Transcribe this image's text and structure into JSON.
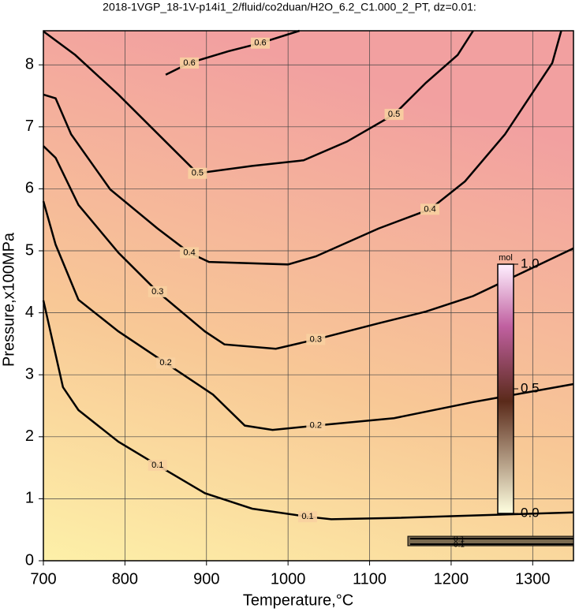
{
  "chart_data": {
    "type": "contour",
    "title": "2018-1VGP_18-1V-p14i1_2/fluid/co2duan/H2O_6.2_C1.000_2_PT, dz=0.01:",
    "x_label": "Temperature,°C",
    "y_label": "Pressure,x100MPa",
    "xlim": [
      700,
      1350
    ],
    "ylim": [
      0,
      8.55
    ],
    "xticks": [
      700,
      800,
      900,
      1000,
      1100,
      1200,
      1300
    ],
    "yticks": [
      0,
      1,
      2,
      3,
      4,
      5,
      6,
      7,
      8
    ],
    "grid": true,
    "line_color": "#000000",
    "series": [
      {
        "name": "0.1",
        "x": [
          700,
          724,
          743,
          792,
          840,
          898,
          956,
          1024,
          1053,
          1130,
          1350
        ],
        "y": [
          4.2,
          2.8,
          2.43,
          1.92,
          1.54,
          1.09,
          0.84,
          0.71,
          0.67,
          0.69,
          0.78
        ]
      },
      {
        "name": "0.2",
        "x": [
          700,
          715,
          743,
          792,
          850,
          908,
          947,
          981,
          1034,
          1130,
          1227,
          1350
        ],
        "y": [
          5.8,
          5.1,
          4.21,
          3.7,
          3.19,
          2.68,
          2.18,
          2.11,
          2.18,
          2.3,
          2.56,
          2.85
        ]
      },
      {
        "name": "0.3",
        "x": [
          700,
          715,
          743,
          792,
          840,
          898,
          922,
          985,
          1034,
          1111,
          1169,
          1227,
          1350
        ],
        "y": [
          6.69,
          6.5,
          5.74,
          4.97,
          4.34,
          3.7,
          3.49,
          3.42,
          3.57,
          3.83,
          4.02,
          4.27,
          5.04
        ]
      },
      {
        "name": "0.4",
        "x": [
          700,
          715,
          734,
          782,
          840,
          879,
          903,
          1000,
          1034,
          1111,
          1174,
          1217,
          1266,
          1324,
          1335
        ],
        "y": [
          7.52,
          7.46,
          6.88,
          5.99,
          5.36,
          4.97,
          4.82,
          4.78,
          4.91,
          5.36,
          5.67,
          6.12,
          6.88,
          8.03,
          8.55
        ]
      },
      {
        "name": "0.5",
        "x": [
          700,
          739,
          792,
          850,
          889,
          956,
          1019,
          1072,
          1130,
          1169,
          1208,
          1227
        ],
        "y": [
          8.54,
          8.16,
          7.52,
          6.76,
          6.25,
          6.37,
          6.46,
          6.76,
          7.2,
          7.71,
          8.16,
          8.55
        ]
      },
      {
        "name": "0.6",
        "x": [
          850,
          879,
          927,
          966,
          1014
        ],
        "y": [
          7.84,
          8.03,
          8.22,
          8.35,
          8.55
        ]
      }
    ],
    "colorbar": {
      "title": "mol",
      "lim": [
        0,
        1
      ],
      "ticks": [
        {
          "value": 0,
          "label": "0.0"
        },
        {
          "value": 0.5,
          "label": "0.5"
        },
        {
          "value": 1,
          "label": "1.0"
        }
      ]
    },
    "inset_labels": [
      "0.1",
      "0.1"
    ]
  }
}
